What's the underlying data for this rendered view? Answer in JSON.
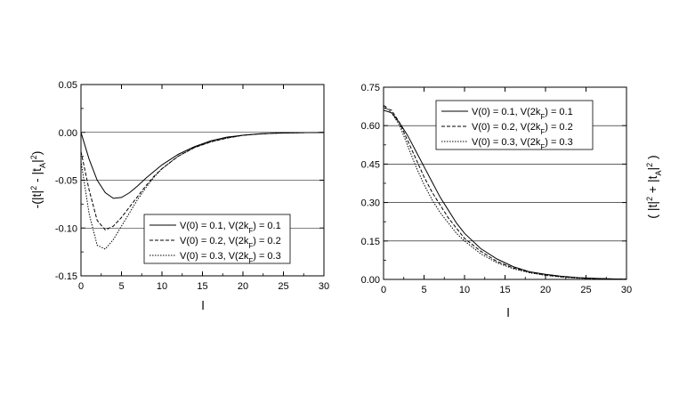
{
  "chart_data": [
    {
      "type": "line",
      "xlabel": "l",
      "ylabel": {
        "pre": "-(|t|",
        "sup1": "2",
        "mid": " - |t",
        "sub": "A",
        "post": "|",
        "sup2": "2",
        "end": ")"
      },
      "xlim": [
        0,
        30
      ],
      "ylim": [
        -0.15,
        0.05
      ],
      "xticks": [
        0,
        5,
        10,
        15,
        20,
        25,
        30
      ],
      "xtick_labels": [
        "0",
        "5",
        "10",
        "15",
        "20",
        "25",
        "30"
      ],
      "yticks": [
        -0.15,
        -0.1,
        -0.05,
        0.0,
        0.05
      ],
      "ytick_labels": [
        "-0.15",
        "-0.10",
        "-0.05",
        "0.00",
        "0.05"
      ],
      "grid": true,
      "legend_position": "bottom-right",
      "x": [
        0,
        1,
        2,
        3,
        4,
        5,
        6,
        7,
        8,
        9,
        10,
        12,
        14,
        16,
        18,
        20,
        22,
        24,
        26,
        28,
        30
      ],
      "series": [
        {
          "label": {
            "a": "V(0) = 0.1, V(2k",
            "sub": "F",
            "b": ") = 0.1"
          },
          "style": "solid",
          "values": [
            0,
            -0.028,
            -0.05,
            -0.063,
            -0.069,
            -0.068,
            -0.063,
            -0.056,
            -0.048,
            -0.041,
            -0.034,
            -0.023,
            -0.015,
            -0.009,
            -0.005,
            -0.003,
            -0.0015,
            -0.0008,
            -0.0004,
            -0.0002,
            -0.0001
          ]
        },
        {
          "label": {
            "a": "V(0) = 0.2, V(2k",
            "sub": "F",
            "b": ") = 0.2"
          },
          "style": "dashed",
          "values": [
            -0.02,
            -0.06,
            -0.092,
            -0.102,
            -0.098,
            -0.089,
            -0.078,
            -0.067,
            -0.056,
            -0.046,
            -0.038,
            -0.025,
            -0.016,
            -0.01,
            -0.006,
            -0.003,
            -0.0017,
            -0.0009,
            -0.0005,
            -0.0002,
            -0.0001
          ]
        },
        {
          "label": {
            "a": "V(0) = 0.3, V(2k",
            "sub": "F",
            "b": ") = 0.3"
          },
          "style": "dotted",
          "values": [
            -0.03,
            -0.085,
            -0.118,
            -0.122,
            -0.112,
            -0.098,
            -0.084,
            -0.07,
            -0.058,
            -0.047,
            -0.038,
            -0.025,
            -0.016,
            -0.01,
            -0.006,
            -0.003,
            -0.0017,
            -0.0009,
            -0.0005,
            -0.0002,
            -0.0001
          ]
        }
      ]
    },
    {
      "type": "line",
      "xlabel": "l",
      "ylabel": {
        "pre": "( |t|",
        "sup1": "2",
        "mid": " + |t",
        "sub": "A",
        "post": "|",
        "sup2": "2",
        "end": " )"
      },
      "xlim": [
        0,
        30
      ],
      "ylim": [
        0.0,
        0.75
      ],
      "xticks": [
        0,
        5,
        10,
        15,
        20,
        25,
        30
      ],
      "xtick_labels": [
        "0",
        "5",
        "10",
        "15",
        "20",
        "25",
        "30"
      ],
      "yticks": [
        0.0,
        0.15,
        0.3,
        0.45,
        0.6,
        0.75
      ],
      "ytick_labels": [
        "0.00",
        "0.15",
        "0.30",
        "0.45",
        "0.60",
        "0.75"
      ],
      "grid": true,
      "legend_position": "top-right",
      "x": [
        0,
        1,
        2,
        3,
        4,
        5,
        6,
        7,
        8,
        9,
        10,
        12,
        14,
        16,
        18,
        20,
        22,
        24,
        26,
        28,
        30
      ],
      "series": [
        {
          "label": {
            "a": "V(0) = 0.1, V(2k",
            "sub": "F",
            "b": ") = 0.1"
          },
          "style": "solid",
          "values": [
            0.66,
            0.65,
            0.61,
            0.56,
            0.5,
            0.44,
            0.38,
            0.32,
            0.27,
            0.22,
            0.18,
            0.12,
            0.08,
            0.05,
            0.03,
            0.02,
            0.012,
            0.007,
            0.004,
            0.002,
            0.001
          ]
        },
        {
          "label": {
            "a": "V(0) = 0.2, V(2k",
            "sub": "F",
            "b": ") = 0.2"
          },
          "style": "dashed",
          "values": [
            0.67,
            0.66,
            0.61,
            0.54,
            0.47,
            0.4,
            0.34,
            0.29,
            0.24,
            0.2,
            0.16,
            0.11,
            0.07,
            0.045,
            0.028,
            0.017,
            0.01,
            0.006,
            0.0035,
            0.002,
            0.001
          ]
        },
        {
          "label": {
            "a": "V(0) = 0.3, V(2k",
            "sub": "F",
            "b": ") = 0.3"
          },
          "style": "dotted",
          "values": [
            0.68,
            0.65,
            0.6,
            0.52,
            0.44,
            0.37,
            0.31,
            0.26,
            0.22,
            0.18,
            0.15,
            0.1,
            0.065,
            0.042,
            0.026,
            0.016,
            0.009,
            0.005,
            0.003,
            0.0015,
            0.001
          ]
        }
      ]
    }
  ]
}
